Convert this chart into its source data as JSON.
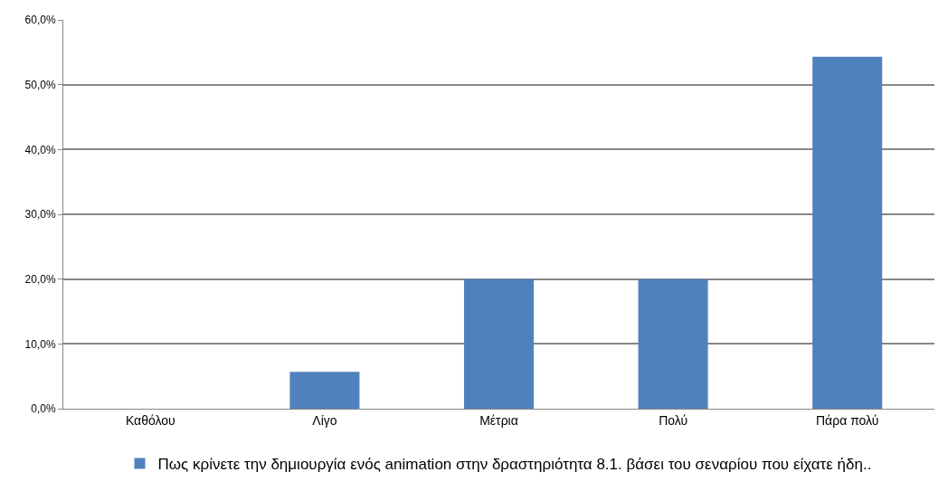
{
  "chart_data": {
    "type": "bar",
    "categories": [
      "Καθόλου",
      "Λίγο",
      "Μέτρια",
      "Πολύ",
      "Πάρα πολύ"
    ],
    "series": [
      {
        "name": "Πως κρίνετε την δημιουργία ενός animation στην δραστηριότητα 8.1. βάσει του σεναρίου που είχατε ήδη..",
        "color": "#4f81bd",
        "values": [
          0,
          5.7,
          20.0,
          20.0,
          54.3
        ]
      }
    ],
    "ylim": [
      0,
      60
    ],
    "yticks": [
      {
        "value": 0,
        "label": "0,0%"
      },
      {
        "value": 10,
        "label": "10,0%"
      },
      {
        "value": 20,
        "label": "20,0%"
      },
      {
        "value": 30,
        "label": "30,0%"
      },
      {
        "value": 40,
        "label": "40,0%"
      },
      {
        "value": 50,
        "label": "50,0%"
      },
      {
        "value": 60,
        "label": "60,0%"
      }
    ],
    "grid": "y",
    "legend": "bottom"
  }
}
